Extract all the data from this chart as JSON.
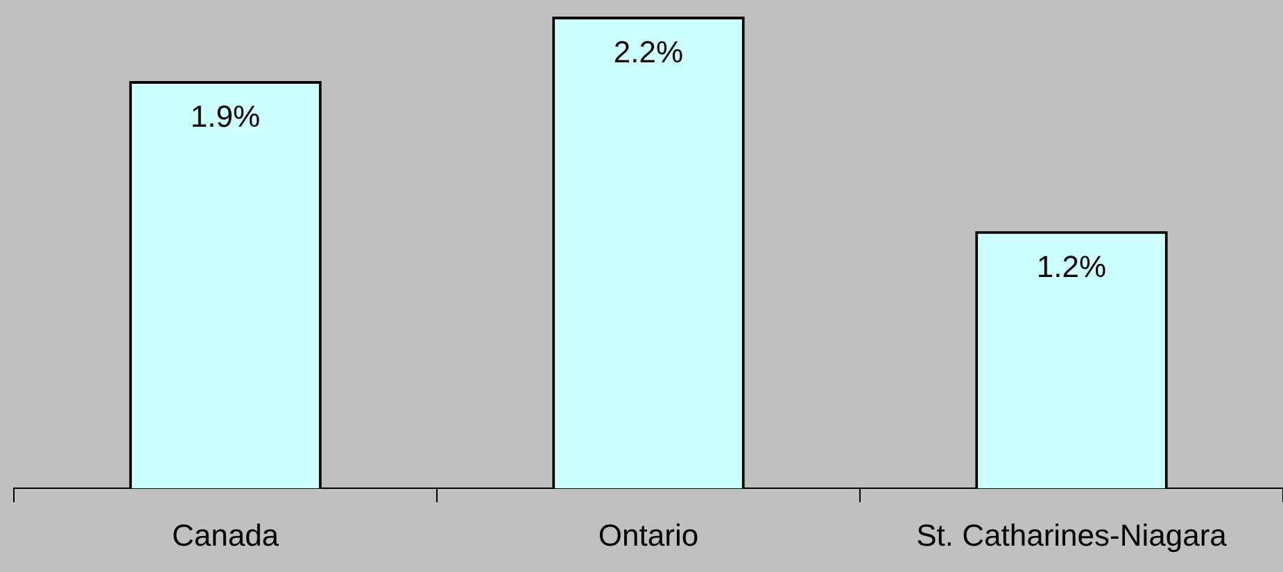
{
  "chart_data": {
    "type": "bar",
    "categories": [
      "Canada",
      "Ontario",
      "St. Catharines-Niagara"
    ],
    "values": [
      1.9,
      2.2,
      1.2
    ],
    "color": "#ccffff",
    "value_labels": [
      "1.9%",
      "2.2%",
      "1.2%"
    ],
    "grid": false,
    "legend": false
  }
}
